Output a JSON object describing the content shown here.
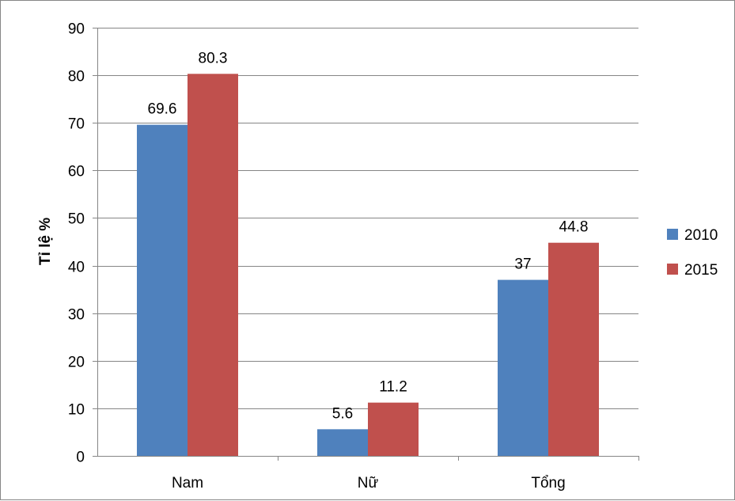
{
  "chart_data": {
    "type": "bar",
    "title": "",
    "xlabel": "",
    "ylabel": "Tỉ lệ %",
    "categories": [
      "Nam",
      "Nữ",
      "Tổng"
    ],
    "series": [
      {
        "name": "2010",
        "color": "#4F81BD",
        "values": [
          69.6,
          5.6,
          37
        ]
      },
      {
        "name": "2015",
        "color": "#C0504D",
        "values": [
          80.3,
          11.2,
          44.8
        ]
      }
    ],
    "data_labels": [
      [
        "69.6",
        "5.6",
        "37"
      ],
      [
        "80.3",
        "11.2",
        "44.8"
      ]
    ],
    "ylim": [
      0,
      90
    ],
    "yticks": [
      0,
      10,
      20,
      30,
      40,
      50,
      60,
      70,
      80,
      90
    ],
    "grid": true,
    "legend_position": "right"
  }
}
